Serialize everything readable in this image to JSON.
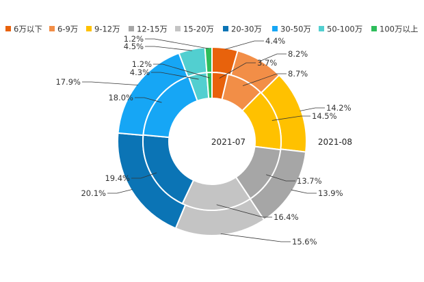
{
  "chart_data": {
    "type": "pie",
    "categories": [
      "6万以下",
      "6-9万",
      "9-12万",
      "12-15万",
      "15-20万",
      "20-30万",
      "30-50万",
      "50-100万",
      "100万以上"
    ],
    "colors": [
      "#E8620C",
      "#F28E47",
      "#FFC100",
      "#A6A6A6",
      "#C4C4C4",
      "#0B74B5",
      "#16A6F5",
      "#52CFD0",
      "#2EBD5B"
    ],
    "series": [
      {
        "name": "2021-07",
        "values": [
          3.7,
          8.7,
          14.5,
          13.7,
          16.4,
          19.4,
          18.0,
          4.3,
          1.2
        ],
        "labels": [
          "3.7%",
          "8.7%",
          "14.5%",
          "13.7%",
          "16.4%",
          "19.4%",
          "18.0%",
          "4.3%",
          "1.2%"
        ]
      },
      {
        "name": "2021-08",
        "values": [
          4.4,
          8.2,
          14.2,
          13.9,
          15.6,
          20.1,
          17.9,
          4.5,
          1.2
        ],
        "labels": [
          "4.4%",
          "8.2%",
          "14.2%",
          "13.9%",
          "15.6%",
          "20.1%",
          "17.9%",
          "4.5%",
          "1.2%"
        ]
      }
    ],
    "legend_position": "top"
  }
}
